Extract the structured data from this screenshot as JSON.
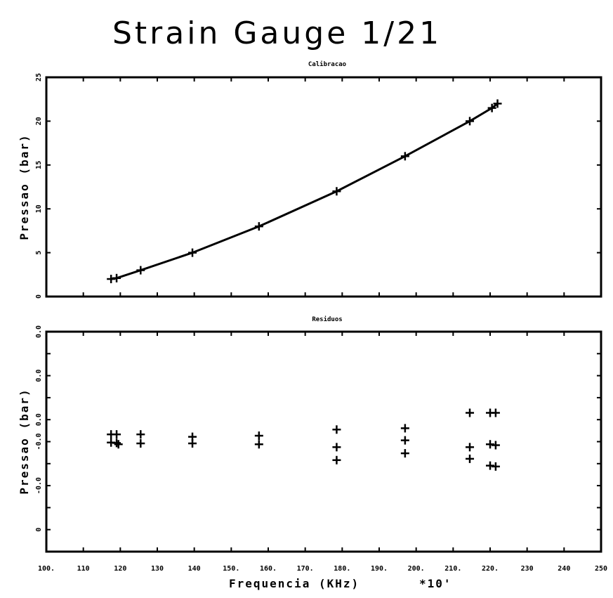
{
  "title": "Strain Gauge 1/21",
  "xlabel": "Frequencia (KHz)",
  "xmultiplier": "*10'",
  "xtick_labels": [
    "100.",
    "110",
    "120",
    "130",
    "140",
    "150.",
    "160.",
    "170.",
    "180.",
    "190.",
    "200.",
    "210.",
    "220.",
    "230",
    "240",
    "250"
  ],
  "chart_data": [
    {
      "type": "line",
      "title": "Calibracao",
      "ylabel": "Pressao (bar)",
      "xlim": [
        100,
        250
      ],
      "ylim": [
        0,
        25
      ],
      "ytick_values": [
        0,
        5,
        10,
        15,
        20,
        25
      ],
      "ytick_labels": [
        "0",
        "5",
        "10",
        "15",
        "20",
        "25"
      ],
      "x": [
        117.5,
        119,
        125.5,
        139.5,
        157.5,
        178.5,
        197,
        214.5,
        220.5,
        222
      ],
      "y": [
        2,
        2.1,
        3,
        5,
        8,
        12,
        16,
        20,
        21.5,
        22
      ],
      "grid": false
    },
    {
      "type": "scatter",
      "title": "Residuos",
      "ylabel": "Pressao (bar)",
      "xlim": [
        100,
        250
      ],
      "ylim": [
        -0.05,
        0.05
      ],
      "ytick_values": [
        -0.05,
        -0.04,
        -0.03,
        -0.02,
        -0.01,
        0,
        0.01,
        0.02,
        0.03,
        0.04,
        0.05
      ],
      "ytick_labels": [
        "",
        "0",
        "",
        "-0.0",
        "",
        "-0.0",
        "0.0",
        "",
        "0.0",
        "",
        "0.0"
      ],
      "points": [
        [
          117.5,
          0.0033
        ],
        [
          117.5,
          -0.0004
        ],
        [
          119,
          0.0033
        ],
        [
          119,
          -0.0006
        ],
        [
          119.5,
          -0.0012
        ],
        [
          125.5,
          0.0033
        ],
        [
          125.5,
          -0.0008
        ],
        [
          139.5,
          0.0022
        ],
        [
          139.5,
          -0.0008
        ],
        [
          157.5,
          0.0027
        ],
        [
          157.5,
          -0.0012
        ],
        [
          178.5,
          0.0055
        ],
        [
          178.5,
          -0.0025
        ],
        [
          178.5,
          -0.0084
        ],
        [
          197,
          0.0061
        ],
        [
          197,
          0.0006
        ],
        [
          197,
          -0.0053
        ],
        [
          214.5,
          0.0131
        ],
        [
          214.5,
          -0.0025
        ],
        [
          214.5,
          -0.0078
        ],
        [
          220,
          0.0131
        ],
        [
          220,
          -0.0012
        ],
        [
          220,
          -0.0109
        ],
        [
          221.5,
          0.0131
        ],
        [
          221.5,
          -0.0016
        ],
        [
          221.5,
          -0.0113
        ]
      ],
      "grid": false
    }
  ]
}
